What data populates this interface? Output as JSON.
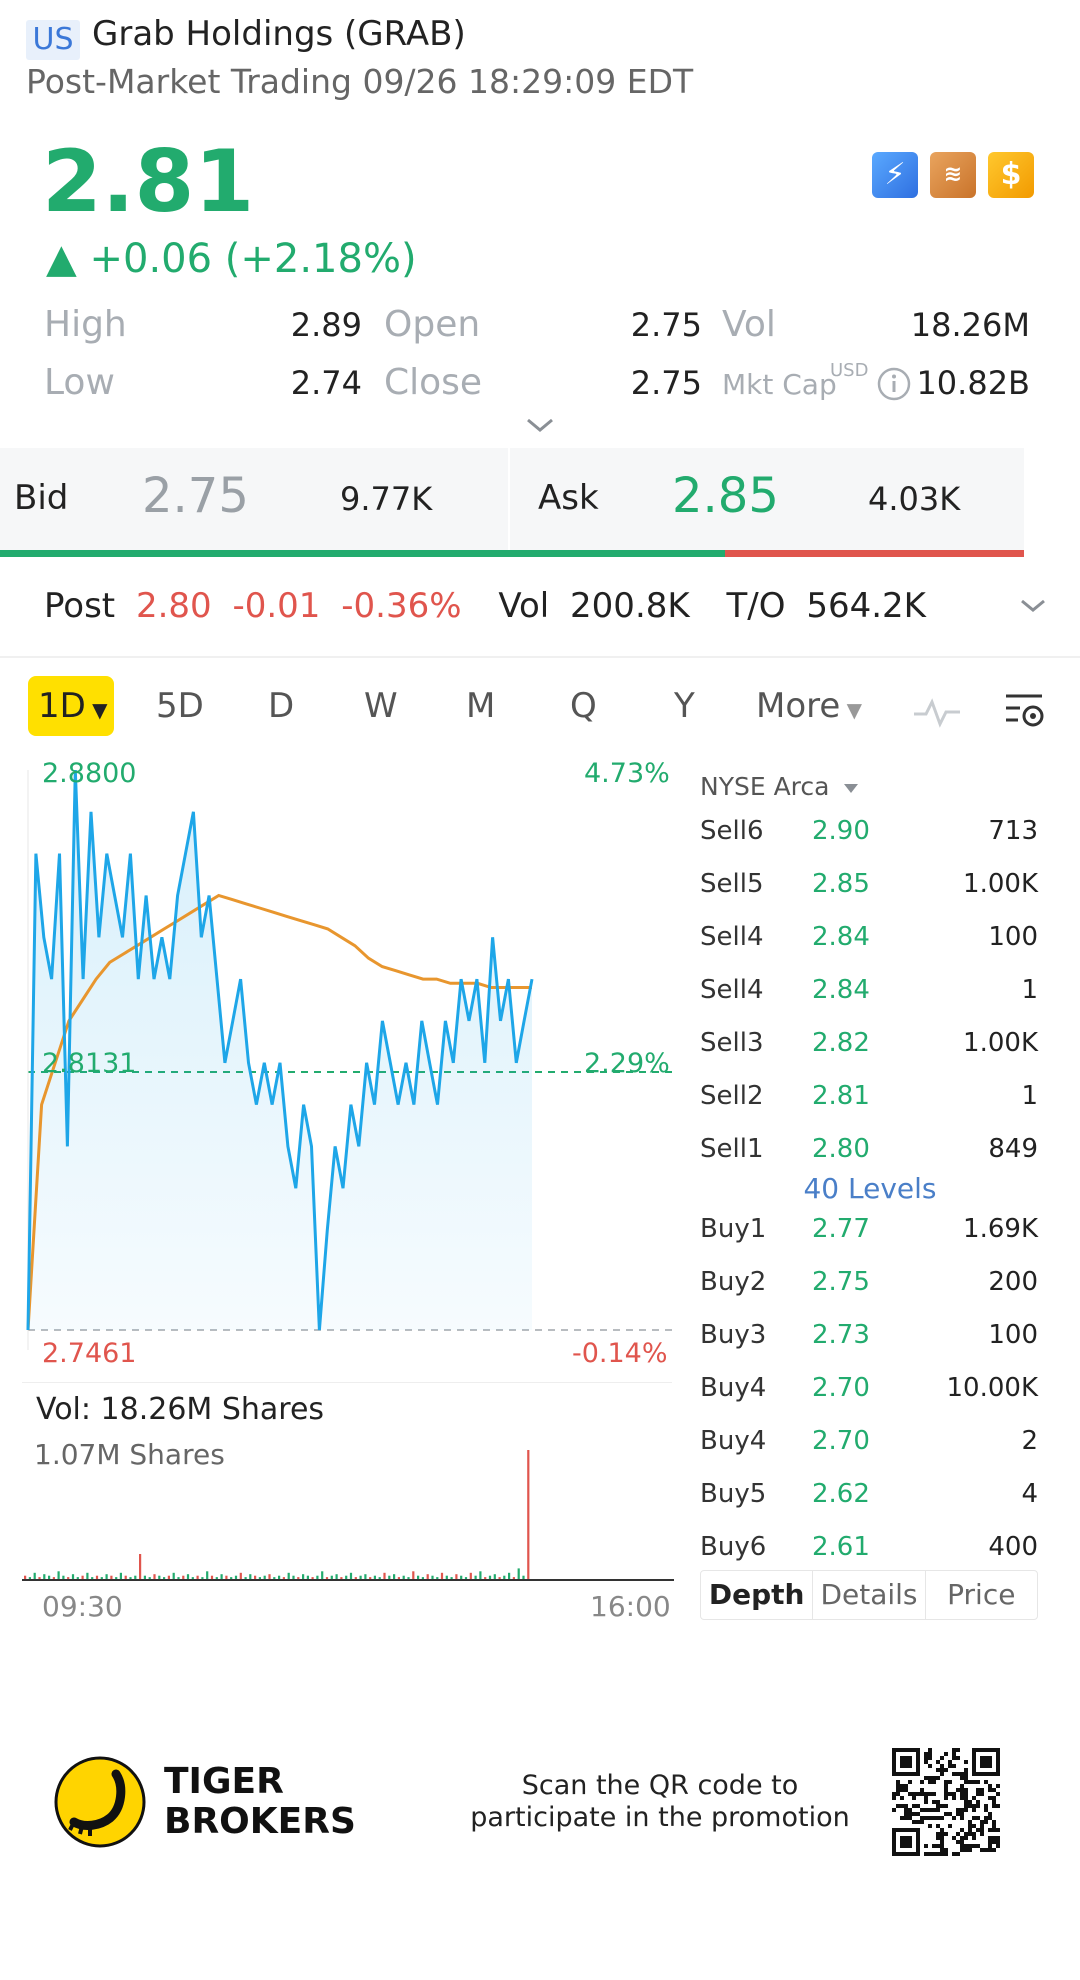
{
  "header": {
    "market_badge": "US",
    "title": "Grab Holdings (GRAB)",
    "subtitle": "Post-Market Trading 09/26 18:29:09 EDT"
  },
  "quote": {
    "price": "2.81",
    "change": "▲ +0.06 (+2.18%)",
    "stats": [
      {
        "label": "High",
        "value": "2.89"
      },
      {
        "label": "Open",
        "value": "2.75"
      },
      {
        "label": "Vol",
        "value": "18.26M"
      },
      {
        "label": "Low",
        "value": "2.74"
      },
      {
        "label": "Close",
        "value": "2.75"
      },
      {
        "label": "Mkt Cap",
        "value": "10.82B",
        "currency": "USD"
      }
    ]
  },
  "icons": {
    "flash": "lightning-level1-icon",
    "stack": "stack-a-icon",
    "dollar": "dollar-icon",
    "flash_glyph": "⚡",
    "stack_glyph": "≋",
    "dollar_glyph": "$"
  },
  "bid_ask": {
    "bid_label": "Bid",
    "bid_price": "2.75",
    "bid_qty": "9.77K",
    "ask_label": "Ask",
    "ask_price": "2.85",
    "ask_qty": "4.03K",
    "bid_ratio": 0.708
  },
  "post_market": {
    "label": "Post",
    "price": "2.80",
    "change": "-0.01",
    "change_pct": "-0.36%",
    "vol_label": "Vol",
    "vol": "200.8K",
    "to_label": "T/O",
    "to": "564.2K"
  },
  "tabs": {
    "items": [
      "1D",
      "5D",
      "D",
      "W",
      "M",
      "Q",
      "Y"
    ],
    "active": "1D",
    "more": "More"
  },
  "chart_data": {
    "type": "line",
    "y_high_label": "2.8800",
    "y_high_pct": "4.73%",
    "y_mid_label": "2.8131",
    "y_mid_pct": "2.29%",
    "y_low_label": "2.7461",
    "y_low_pct": "-0.14%",
    "ylim": [
      2.7461,
      2.88
    ],
    "series": [
      {
        "values": [
          2.7461,
          2.86,
          2.84,
          2.83,
          2.86,
          2.79,
          2.88,
          2.83,
          2.87,
          2.84,
          2.86,
          2.85,
          2.84,
          2.86,
          2.83,
          2.85,
          2.83,
          2.84,
          2.83,
          2.85,
          2.86,
          2.87,
          2.84,
          2.85,
          2.83,
          2.81,
          2.82,
          2.83,
          2.81,
          2.8,
          2.81,
          2.8,
          2.81,
          2.79,
          2.78,
          2.8,
          2.79,
          2.7461,
          2.77,
          2.79,
          2.78,
          2.8,
          2.79,
          2.81,
          2.8,
          2.82,
          2.81,
          2.8,
          2.81,
          2.8,
          2.82,
          2.81,
          2.8,
          2.82,
          2.81,
          2.83,
          2.82,
          2.83,
          2.81,
          2.84,
          2.82,
          2.83,
          2.81,
          2.82,
          2.83
        ]
      },
      {
        "values": [
          2.7461,
          2.8,
          2.81,
          2.82,
          2.825,
          2.83,
          2.834,
          2.836,
          2.838,
          2.84,
          2.842,
          2.844,
          2.846,
          2.848,
          2.85,
          2.849,
          2.848,
          2.847,
          2.846,
          2.845,
          2.844,
          2.843,
          2.842,
          2.84,
          2.838,
          2.835,
          2.833,
          2.832,
          2.831,
          2.83,
          2.83,
          2.829,
          2.829,
          2.829,
          2.828,
          2.828,
          2.828,
          2.828
        ]
      }
    ]
  },
  "volume": {
    "title": "Vol:   18.26M Shares",
    "max_label": "1.07M Shares",
    "bars": [
      3,
      2,
      5,
      2,
      4,
      3,
      2,
      6,
      3,
      2,
      4,
      2,
      3,
      5,
      2,
      3,
      2,
      4,
      3,
      2,
      5,
      3,
      2,
      3,
      18,
      3,
      2,
      4,
      3,
      2,
      3,
      5,
      2,
      3,
      4,
      2,
      3,
      2,
      6,
      3,
      2,
      4,
      3,
      2,
      3,
      5,
      2,
      4,
      3,
      2,
      3,
      4,
      2,
      3,
      2,
      5,
      3,
      2,
      4,
      3,
      2,
      3,
      6,
      2,
      3,
      4,
      2,
      3,
      5,
      2,
      3,
      4,
      2,
      3,
      2,
      5,
      3,
      4,
      2,
      3,
      2,
      6,
      3,
      2,
      4,
      3,
      2,
      5,
      3,
      2,
      4,
      3,
      2,
      5,
      3,
      6,
      2,
      3,
      4,
      2,
      3,
      5,
      2,
      8,
      3,
      90
    ],
    "time_start": "09:30",
    "time_end": "16:00"
  },
  "order_book": {
    "exchange": "NYSE Arca",
    "sells": [
      {
        "label": "Sell6",
        "price": "2.90",
        "qty": "713"
      },
      {
        "label": "Sell5",
        "price": "2.85",
        "qty": "1.00K"
      },
      {
        "label": "Sell4",
        "price": "2.84",
        "qty": "100"
      },
      {
        "label": "Sell4",
        "price": "2.84",
        "qty": "1"
      },
      {
        "label": "Sell3",
        "price": "2.82",
        "qty": "1.00K"
      },
      {
        "label": "Sell2",
        "price": "2.81",
        "qty": "1"
      },
      {
        "label": "Sell1",
        "price": "2.80",
        "qty": "849"
      }
    ],
    "levels": "40 Levels",
    "buys": [
      {
        "label": "Buy1",
        "price": "2.77",
        "qty": "1.69K"
      },
      {
        "label": "Buy2",
        "price": "2.75",
        "qty": "200"
      },
      {
        "label": "Buy3",
        "price": "2.73",
        "qty": "100"
      },
      {
        "label": "Buy4",
        "price": "2.70",
        "qty": "10.00K"
      },
      {
        "label": "Buy4",
        "price": "2.70",
        "qty": "2"
      },
      {
        "label": "Buy5",
        "price": "2.62",
        "qty": "4"
      },
      {
        "label": "Buy6",
        "price": "2.61",
        "qty": "400"
      }
    ],
    "tabs": [
      "Depth",
      "Details",
      "Price"
    ],
    "active_tab": "Depth"
  },
  "footer": {
    "brand_line1": "TIGER",
    "brand_line2": "BROKERS",
    "promo_line1": "Scan the QR code to",
    "promo_line2": "participate in the promotion"
  },
  "colors": {
    "up": "#22ab6e",
    "down": "#e0554d",
    "price_line": "#1ea6e8",
    "avg_line": "#e8962e"
  }
}
